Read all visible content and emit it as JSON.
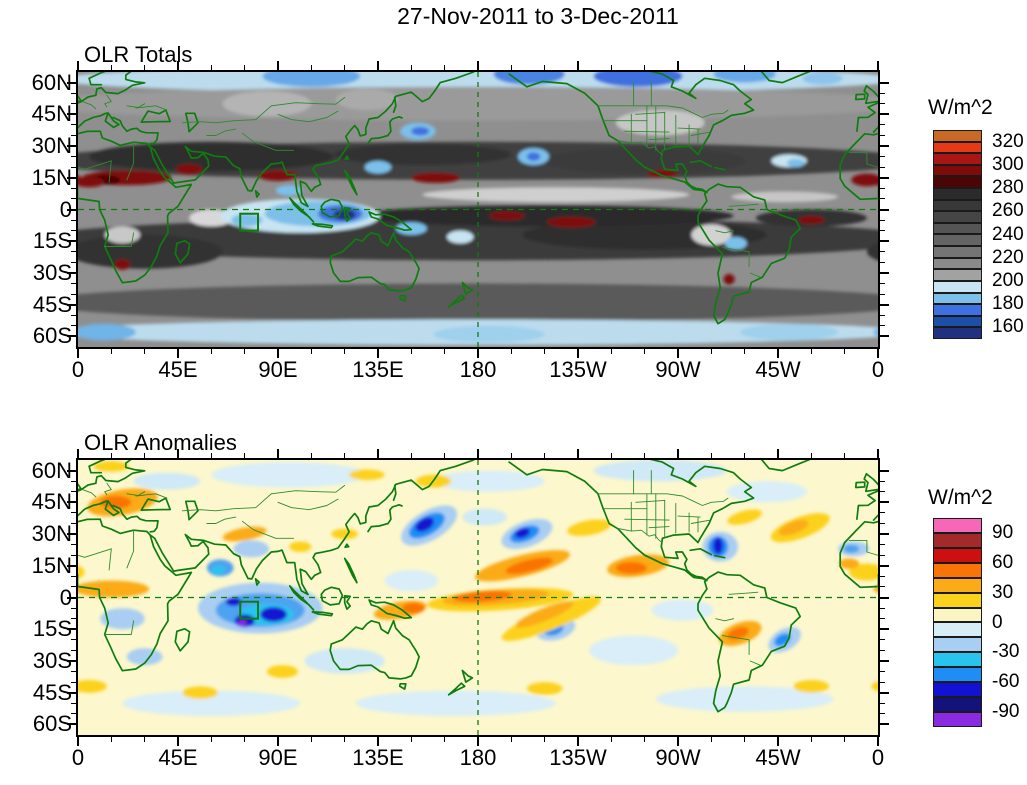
{
  "chart_data": {
    "type": "filled_contour_map",
    "title": "27-Nov-2011 to 3-Dec-2011",
    "lon_axis": {
      "range_deg": [
        0,
        360
      ],
      "tick_labels": [
        "0",
        "45E",
        "90E",
        "135E",
        "180",
        "135W",
        "90W",
        "45W",
        "0"
      ],
      "minor_step_deg": 15,
      "major_step_deg": 45
    },
    "lat_axis": {
      "range_deg": [
        -65,
        65
      ],
      "tick_labels": [
        "60N",
        "45N",
        "30N",
        "15N",
        "0",
        "15S",
        "30S",
        "45S",
        "60S"
      ],
      "minor_step_deg": 5,
      "major_step_deg": 15
    },
    "annotations": {
      "line_color": "#0e7d0e",
      "equator_dashed": true,
      "dateline_dashed_lon": 180,
      "index_box": {
        "lon": [
          73,
          81
        ],
        "lat": [
          -10,
          -2
        ]
      }
    },
    "map_style": {
      "coast_color": "#0e7d0e",
      "border_color": "#2e8b2e"
    },
    "feature_format": [
      "lon_deg_east",
      "lat_deg",
      "rx_deg",
      "ry_deg",
      "rot_deg",
      "fill_color"
    ],
    "panels": [
      {
        "title": "OLR Totals",
        "units": "W/m^2",
        "base_color": "#8f8f8f",
        "colorbar": {
          "labels": [
            "320",
            "300",
            "280",
            "260",
            "240",
            "220",
            "200",
            "180",
            "160"
          ],
          "colors": [
            "#c96a24",
            "#e53a15",
            "#a81616",
            "#7f0b0b",
            "#4c0505",
            "#2b2b2b",
            "#383838",
            "#454545",
            "#555555",
            "#646464",
            "#757575",
            "#8a8a8a",
            "#a2a2a2",
            "#c8e4f2",
            "#7cc0ea",
            "#3f6fe0",
            "#1d4fa8",
            "#20317f"
          ]
        },
        "features": [
          [
            180,
            61.5,
            190,
            6.5,
            0,
            "#bcdcee"
          ],
          [
            105,
            63,
            22,
            5,
            0,
            "#66a8e8"
          ],
          [
            203,
            64,
            16,
            5,
            0,
            "#4a84e2"
          ],
          [
            252,
            63,
            20,
            5,
            0,
            "#3f6fe0"
          ],
          [
            300,
            64,
            14,
            4,
            0,
            "#66a8e8"
          ],
          [
            335,
            62,
            9,
            3,
            0,
            "#8cc4ec"
          ],
          [
            178,
            50,
            200,
            8,
            0,
            "#9a9a9a"
          ],
          [
            180,
            -44,
            200,
            9,
            0,
            "#5a5a5a"
          ],
          [
            180,
            -58,
            195,
            6,
            0,
            "#bcdcee"
          ],
          [
            12,
            -58,
            14,
            4,
            0,
            "#6fb4e8"
          ],
          [
            185,
            -59,
            25,
            4,
            0,
            "#9fd0ec"
          ],
          [
            320,
            -58,
            22,
            4,
            0,
            "#9fd0ec"
          ],
          [
            180,
            23,
            200,
            9,
            0,
            "#3f3f3f"
          ],
          [
            60,
            25,
            55,
            7,
            0,
            "#2d2d2d"
          ],
          [
            155,
            26,
            40,
            5,
            0,
            "#333333"
          ],
          [
            255,
            23,
            45,
            6,
            0,
            "#3a3a3a"
          ],
          [
            180,
            -14,
            200,
            10,
            0,
            "#3a3a3a"
          ],
          [
            255,
            -12,
            55,
            7,
            0,
            "#2d2d2d"
          ],
          [
            30,
            -20,
            35,
            8,
            0,
            "#333333"
          ],
          [
            210,
            -3,
            85,
            5,
            0,
            "#2a2a2a"
          ],
          [
            330,
            -4,
            25,
            4,
            0,
            "#303030"
          ],
          [
            215,
            7,
            60,
            3.5,
            0,
            "#cfcfcf"
          ],
          [
            318,
            6,
            24,
            2.5,
            0,
            "#c6c6c6"
          ],
          [
            262,
            41,
            20,
            6,
            0,
            "#c6c6c6"
          ],
          [
            85,
            50,
            20,
            6,
            0,
            "#b4b4b4"
          ],
          [
            130,
            52,
            14,
            5,
            0,
            "#aaaaaa"
          ],
          [
            285,
            -12,
            9,
            5,
            0,
            "#d2d2d2"
          ],
          [
            20,
            -12,
            8,
            4,
            0,
            "#c8c8c8"
          ],
          [
            60,
            -4,
            10,
            4,
            0,
            "#d8d8d8"
          ],
          [
            100,
            -3,
            36,
            8,
            0,
            "#c8e4f2"
          ],
          [
            108,
            -2,
            24,
            6,
            0,
            "#7cc0ea"
          ],
          [
            118,
            -2,
            10,
            4,
            0,
            "#3f6fe0"
          ],
          [
            120,
            -2.5,
            5,
            2.5,
            0,
            "#20317f"
          ],
          [
            76,
            -5,
            7,
            3,
            0,
            "#7cc0ea"
          ],
          [
            95,
            9,
            6,
            2.5,
            0,
            "#7cc0ea"
          ],
          [
            135,
            20,
            6,
            3,
            0,
            "#7cc0ea"
          ],
          [
            150,
            -9,
            7,
            3,
            0,
            "#7cc0ea"
          ],
          [
            172,
            -13,
            6,
            3,
            0,
            "#c8e4f2"
          ],
          [
            205,
            25,
            7,
            4,
            0,
            "#7cc0ea"
          ],
          [
            205,
            25,
            3,
            2,
            0,
            "#3f6fe0"
          ],
          [
            153,
            37,
            8,
            4,
            0,
            "#7cc0ea"
          ],
          [
            154,
            37,
            4,
            2,
            0,
            "#3f6fe0"
          ],
          [
            320,
            23,
            8,
            3,
            0,
            "#c8e4f2"
          ],
          [
            323,
            22,
            4,
            2,
            0,
            "#7cc0ea"
          ],
          [
            296,
            -16,
            5,
            3,
            0,
            "#7cc0ea"
          ],
          [
            22,
            15,
            20,
            3.5,
            0,
            "#7f0b0b"
          ],
          [
            12,
            14,
            7,
            2.2,
            0,
            "#4c0505"
          ],
          [
            5,
            13,
            7,
            2.5,
            0,
            "#7f0b0b"
          ],
          [
            355,
            14,
            7,
            3,
            0,
            "#7f0b0b"
          ],
          [
            50,
            19,
            6,
            2.5,
            0,
            "#7f0b0b"
          ],
          [
            90,
            16,
            9,
            2.5,
            0,
            "#7f0b0b"
          ],
          [
            161,
            15,
            11,
            2.5,
            0,
            "#7f0b0b"
          ],
          [
            193,
            -3,
            8,
            2,
            0,
            "#7f0b0b"
          ],
          [
            222,
            -6,
            11,
            2.5,
            0,
            "#7f0b0b"
          ],
          [
            330,
            -5,
            6,
            2,
            0,
            "#7f0b0b"
          ],
          [
            20,
            -26,
            3.5,
            2.5,
            0,
            "#7f0b0b"
          ],
          [
            293,
            -33,
            2.5,
            2.5,
            0,
            "#7f0b0b"
          ],
          [
            263,
            17,
            7,
            1.8,
            0,
            "#7f0b0b"
          ]
        ]
      },
      {
        "title": "OLR Anomalies",
        "units": "W/m^2",
        "base_color": "#fcf7cd",
        "colorbar": {
          "labels": [
            "90",
            "60",
            "30",
            "0",
            "-30",
            "-60",
            "-90"
          ],
          "colors": [
            "#f767b8",
            "#a32a2a",
            "#cc0f0f",
            "#f97306",
            "#fbab18",
            "#fcd11c",
            "#fbf5c3",
            "#d6edf8",
            "#a9cef2",
            "#28c4ee",
            "#1f8df5",
            "#1212d2",
            "#12127a",
            "#8a2be2"
          ]
        },
        "features": [
          [
            95,
            58,
            35,
            6,
            0,
            "#d9eef8"
          ],
          [
            185,
            55,
            25,
            5,
            0,
            "#d9eef8"
          ],
          [
            262,
            60,
            30,
            5,
            0,
            "#cfe9f6"
          ],
          [
            310,
            50,
            18,
            5,
            0,
            "#d9eef8"
          ],
          [
            40,
            55,
            15,
            4,
            0,
            "#cfe9f6"
          ],
          [
            150,
            8,
            12,
            5,
            0,
            "#d9eef8"
          ],
          [
            250,
            -25,
            20,
            7,
            0,
            "#d9eef8"
          ],
          [
            272,
            -6,
            14,
            5,
            0,
            "#d9eef8"
          ],
          [
            60,
            -50,
            40,
            6,
            0,
            "#d9eef8"
          ],
          [
            170,
            -50,
            45,
            6,
            0,
            "#d9eef8"
          ],
          [
            300,
            -48,
            40,
            6,
            0,
            "#d9eef8"
          ],
          [
            120,
            -30,
            18,
            6,
            0,
            "#cfe9f6"
          ],
          [
            20,
            -10,
            10,
            5,
            0,
            "#a9cef2"
          ],
          [
            30,
            -28,
            8,
            4,
            0,
            "#a9cef2"
          ],
          [
            82,
            -5,
            28,
            12,
            0,
            "#a9cef2"
          ],
          [
            82,
            -6,
            20,
            8,
            0,
            "#4da3f0"
          ],
          [
            85,
            -8,
            12,
            5,
            0,
            "#28c4ee"
          ],
          [
            88,
            -8,
            6,
            3.5,
            0,
            "#1212d2"
          ],
          [
            75,
            -11,
            4.5,
            3,
            0,
            "#1212d2"
          ],
          [
            74,
            -12,
            2,
            1.5,
            0,
            "#8a2be2"
          ],
          [
            70,
            -2,
            3.5,
            2,
            0,
            "#1212d2"
          ],
          [
            78,
            23,
            8,
            4,
            0,
            "#a9cef2"
          ],
          [
            64,
            14,
            6,
            4,
            0,
            "#4da3f0"
          ],
          [
            63,
            13,
            3,
            2,
            0,
            "#28c4ee"
          ],
          [
            158,
            34,
            14,
            7,
            -30,
            "#a9cef2"
          ],
          [
            157,
            34,
            9,
            4.5,
            -30,
            "#1f8df5"
          ],
          [
            156,
            34.5,
            4.5,
            2.8,
            -30,
            "#1212d2"
          ],
          [
            183,
            38,
            10,
            4,
            0,
            "#cfe9f6"
          ],
          [
            202,
            30,
            12,
            6,
            -20,
            "#a9cef2"
          ],
          [
            201,
            30,
            7,
            3.5,
            -20,
            "#1f8df5"
          ],
          [
            200,
            30.5,
            3.5,
            2.2,
            -20,
            "#1212d2"
          ],
          [
            289,
            24,
            8,
            7,
            0,
            "#a9cef2"
          ],
          [
            288,
            24,
            4.5,
            5,
            0,
            "#1f8df5"
          ],
          [
            288,
            24.5,
            2.2,
            4,
            0,
            "#1212d2"
          ],
          [
            215,
            -15,
            9,
            5,
            -15,
            "#a9cef2"
          ],
          [
            214,
            -15,
            4.5,
            2.8,
            -15,
            "#1f8df5"
          ],
          [
            318,
            -20,
            8,
            5,
            -30,
            "#a9cef2"
          ],
          [
            317,
            -20,
            4,
            2.6,
            -30,
            "#1f8df5"
          ],
          [
            349,
            23,
            7,
            3.5,
            0,
            "#a9cef2"
          ],
          [
            348,
            23,
            3.5,
            2,
            0,
            "#4da3f0"
          ],
          [
            15,
            62,
            8,
            2.5,
            0,
            "#fcd11c"
          ],
          [
            130,
            58,
            8,
            2.5,
            0,
            "#fcd11c"
          ],
          [
            160,
            55,
            8,
            3,
            0,
            "#fcd11c"
          ],
          [
            20,
            45,
            16,
            6,
            -10,
            "#fbab18"
          ],
          [
            17,
            45,
            7,
            3,
            0,
            "#f97306"
          ],
          [
            15,
            4,
            17,
            4,
            0,
            "#fbab18"
          ],
          [
            75,
            30,
            10,
            3,
            -10,
            "#fbab18"
          ],
          [
            100,
            24,
            5,
            2.5,
            0,
            "#fcd11c"
          ],
          [
            120,
            30,
            6,
            2.5,
            0,
            "#fcd11c"
          ],
          [
            145,
            -6,
            12,
            4,
            -10,
            "#fbab18"
          ],
          [
            151,
            -5,
            5,
            2.5,
            0,
            "#f97306"
          ],
          [
            190,
            -1,
            33,
            5,
            -4,
            "#fcd11c"
          ],
          [
            188,
            0,
            24,
            3.5,
            -4,
            "#fbab18"
          ],
          [
            182,
            0.5,
            13,
            2.5,
            -4,
            "#f97306"
          ],
          [
            213,
            -10,
            24,
            5,
            -22,
            "#fcd11c"
          ],
          [
            210,
            -8,
            14,
            3,
            -22,
            "#fbab18"
          ],
          [
            200,
            15,
            22,
            5,
            -14,
            "#fbab18"
          ],
          [
            203,
            15,
            11,
            2.8,
            -14,
            "#f97306"
          ],
          [
            252,
            15,
            14,
            5,
            -8,
            "#fbab18"
          ],
          [
            249,
            14,
            7,
            2.8,
            0,
            "#f97306"
          ],
          [
            298,
            -17,
            10,
            5,
            -20,
            "#fbab18"
          ],
          [
            297,
            -17,
            5,
            2.6,
            -20,
            "#f97306"
          ],
          [
            325,
            33,
            14,
            5,
            -20,
            "#fcd11c"
          ],
          [
            322,
            33,
            7,
            2.8,
            -20,
            "#fbab18"
          ],
          [
            300,
            38,
            8,
            3,
            -15,
            "#fcd11c"
          ],
          [
            355,
            12,
            8,
            4,
            0,
            "#fcd11c"
          ],
          [
            347,
            16,
            4.5,
            2.5,
            0,
            "#fbab18"
          ],
          [
            230,
            33,
            10,
            3.5,
            -10,
            "#fcd11c"
          ],
          [
            5,
            -42,
            8,
            3,
            0,
            "#fcd11c"
          ],
          [
            55,
            -45,
            8,
            3,
            0,
            "#fcd11c"
          ],
          [
            210,
            -43,
            8,
            3,
            0,
            "#fcd11c"
          ],
          [
            330,
            -42,
            8,
            3,
            0,
            "#fcd11c"
          ],
          [
            92,
            -35,
            7,
            3,
            0,
            "#fcd11c"
          ]
        ]
      }
    ]
  }
}
